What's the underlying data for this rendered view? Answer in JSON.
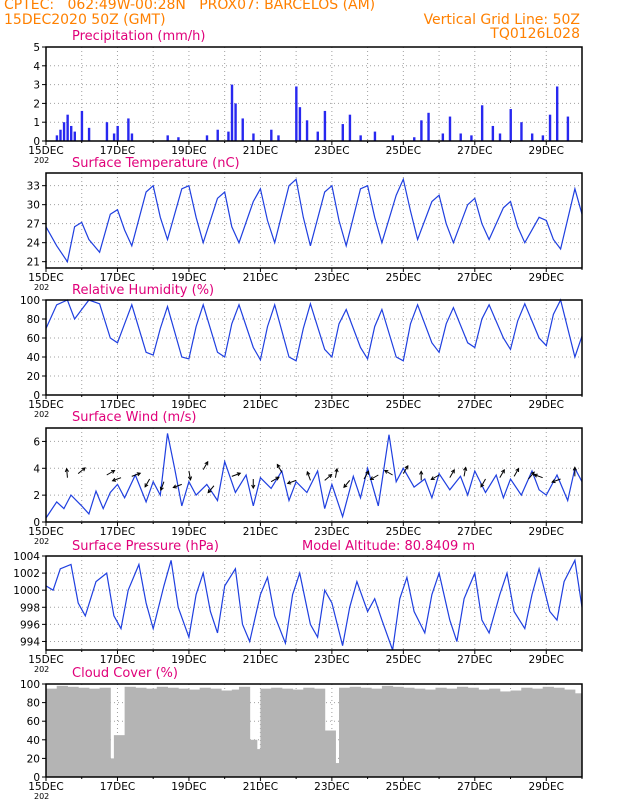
{
  "header": {
    "line1": "CPTEC:   062:49W-00:28N   PROX07: BARCELOS (AM)",
    "line2": "15DEC2020 50Z (GMT)",
    "grid_note": "Vertical Grid Line: 50Z",
    "run_id": "TQ0126L028"
  },
  "x_axis": {
    "days": [
      "15DEC",
      "17DEC",
      "19DEC",
      "21DEC",
      "23DEC",
      "25DEC",
      "27DEC",
      "29DEC"
    ],
    "year_fragment": "202"
  },
  "colors": {
    "header": "#ff8000",
    "title": "#e0007a",
    "line": "#1f3fe0",
    "bar": "#2828f0",
    "cloud": "#b4b4b4",
    "grid": "#a0a0a0"
  },
  "panels": {
    "precip": {
      "title": "Precipitation (mm/h)"
    },
    "temp": {
      "title": "Surface Temperature (nC)"
    },
    "rh": {
      "title": "Relative Humidity (%)"
    },
    "wind": {
      "title": "Surface Wind (m/s)"
    },
    "pres": {
      "title": "Surface Pressure (hPa)",
      "altitude": "Model Altitude: 80.8409 m"
    },
    "cloud": {
      "title": "Cloud Cover (%)"
    }
  },
  "chart_data": [
    {
      "type": "bar",
      "id": "precip",
      "title": "Precipitation (mm/h)",
      "x_range_days": [
        15,
        30
      ],
      "ylim": [
        0,
        5
      ],
      "yticks": [
        0,
        1,
        2,
        3,
        4,
        5
      ],
      "x": [
        15.3,
        15.4,
        15.5,
        15.6,
        15.7,
        15.8,
        16.0,
        16.2,
        16.7,
        16.9,
        17.0,
        17.3,
        17.4,
        18.4,
        18.7,
        19.5,
        19.8,
        20.1,
        20.2,
        20.3,
        20.5,
        20.8,
        21.3,
        21.5,
        22.0,
        22.1,
        22.3,
        22.6,
        22.8,
        23.3,
        23.5,
        23.8,
        24.2,
        24.7,
        25.3,
        25.5,
        25.7,
        26.1,
        26.3,
        26.6,
        26.9,
        27.2,
        27.5,
        27.7,
        28.0,
        28.3,
        28.6,
        28.9,
        29.1,
        29.3,
        29.6
      ],
      "values": [
        0.3,
        0.6,
        1.0,
        1.4,
        0.8,
        0.5,
        1.6,
        0.7,
        1.0,
        0.4,
        0.8,
        1.2,
        0.4,
        0.3,
        0.2,
        0.3,
        0.6,
        0.5,
        3.0,
        2.0,
        1.2,
        0.4,
        0.6,
        0.3,
        2.9,
        1.8,
        1.1,
        0.5,
        1.6,
        0.9,
        1.4,
        0.3,
        0.5,
        0.3,
        0.2,
        1.1,
        1.5,
        0.4,
        1.3,
        0.4,
        0.3,
        1.9,
        0.8,
        0.4,
        1.7,
        1.0,
        0.4,
        0.3,
        1.4,
        2.9,
        1.3
      ]
    },
    {
      "type": "line",
      "id": "temp",
      "title": "Surface Temperature (nC)",
      "x_range_days": [
        15,
        30
      ],
      "ylim": [
        20,
        35
      ],
      "yticks": [
        21,
        24,
        27,
        30,
        33
      ],
      "x": [
        15.0,
        15.3,
        15.6,
        15.8,
        16.0,
        16.2,
        16.5,
        16.8,
        17.0,
        17.2,
        17.4,
        17.8,
        18.0,
        18.2,
        18.4,
        18.8,
        19.0,
        19.2,
        19.4,
        19.8,
        20.0,
        20.2,
        20.4,
        20.8,
        21.0,
        21.2,
        21.4,
        21.8,
        22.0,
        22.2,
        22.4,
        22.8,
        23.0,
        23.2,
        23.4,
        23.8,
        24.0,
        24.2,
        24.4,
        24.8,
        25.0,
        25.2,
        25.4,
        25.8,
        26.0,
        26.2,
        26.4,
        26.8,
        27.0,
        27.2,
        27.4,
        27.8,
        28.0,
        28.2,
        28.4,
        28.8,
        29.0,
        29.2,
        29.4,
        29.8,
        30.0
      ],
      "values": [
        26.5,
        23.5,
        21.0,
        26.5,
        27.2,
        24.5,
        22.5,
        28.5,
        29.2,
        26.0,
        23.5,
        32.0,
        33.0,
        28.0,
        24.5,
        32.5,
        33.0,
        28.0,
        24.0,
        31.0,
        32.0,
        26.5,
        24.0,
        30.5,
        32.5,
        27.5,
        24.0,
        33.0,
        34.0,
        28.0,
        23.5,
        32.0,
        33.0,
        27.5,
        23.5,
        32.5,
        33.0,
        28.0,
        24.0,
        31.5,
        34.0,
        29.0,
        24.5,
        30.5,
        31.5,
        27.0,
        24.0,
        30.0,
        31.0,
        27.0,
        24.5,
        29.5,
        30.5,
        26.5,
        24.0,
        28.0,
        27.5,
        24.5,
        23.0,
        32.5,
        28.5
      ]
    },
    {
      "type": "line",
      "id": "rh",
      "title": "Relative Humidity (%)",
      "x_range_days": [
        15,
        30
      ],
      "ylim": [
        0,
        100
      ],
      "yticks": [
        0,
        20,
        40,
        60,
        80,
        100
      ],
      "x": [
        15.0,
        15.3,
        15.6,
        15.8,
        16.0,
        16.2,
        16.5,
        16.8,
        17.0,
        17.2,
        17.4,
        17.8,
        18.0,
        18.2,
        18.4,
        18.8,
        19.0,
        19.2,
        19.4,
        19.8,
        20.0,
        20.2,
        20.4,
        20.8,
        21.0,
        21.2,
        21.4,
        21.8,
        22.0,
        22.2,
        22.4,
        22.8,
        23.0,
        23.2,
        23.4,
        23.8,
        24.0,
        24.2,
        24.4,
        24.8,
        25.0,
        25.2,
        25.4,
        25.8,
        26.0,
        26.2,
        26.4,
        26.8,
        27.0,
        27.2,
        27.4,
        27.8,
        28.0,
        28.2,
        28.4,
        28.8,
        29.0,
        29.2,
        29.4,
        29.8,
        30.0
      ],
      "values": [
        70,
        95,
        100,
        80,
        90,
        100,
        96,
        60,
        55,
        75,
        95,
        45,
        42,
        70,
        93,
        40,
        38,
        72,
        95,
        45,
        40,
        75,
        95,
        50,
        37,
        72,
        95,
        40,
        36,
        70,
        96,
        48,
        40,
        75,
        90,
        50,
        38,
        72,
        90,
        40,
        36,
        75,
        95,
        55,
        45,
        75,
        92,
        55,
        50,
        80,
        95,
        60,
        48,
        78,
        96,
        60,
        52,
        85,
        100,
        40,
        62
      ]
    },
    {
      "type": "line",
      "id": "wind",
      "title": "Surface Wind (m/s)",
      "x_range_days": [
        15,
        30
      ],
      "ylim": [
        0,
        7
      ],
      "yticks": [
        0,
        2,
        4,
        6
      ],
      "x": [
        15.0,
        15.3,
        15.5,
        15.7,
        16.0,
        16.2,
        16.4,
        16.6,
        16.8,
        17.0,
        17.2,
        17.5,
        17.8,
        18.0,
        18.2,
        18.4,
        18.6,
        18.8,
        19.0,
        19.2,
        19.5,
        19.8,
        20.0,
        20.3,
        20.6,
        20.8,
        21.0,
        21.3,
        21.6,
        21.8,
        22.0,
        22.3,
        22.6,
        22.8,
        23.0,
        23.3,
        23.6,
        23.8,
        24.0,
        24.3,
        24.6,
        24.8,
        25.0,
        25.3,
        25.6,
        25.8,
        26.0,
        26.3,
        26.6,
        26.8,
        27.0,
        27.3,
        27.6,
        27.8,
        28.0,
        28.3,
        28.6,
        28.8,
        29.0,
        29.3,
        29.6,
        29.8,
        30.0
      ],
      "values": [
        0.3,
        1.5,
        1.0,
        2.0,
        1.2,
        0.6,
        2.3,
        1.0,
        2.2,
        2.8,
        1.8,
        3.5,
        1.5,
        3.0,
        2.0,
        6.6,
        4.0,
        1.2,
        3.0,
        2.0,
        2.8,
        1.6,
        4.5,
        2.2,
        3.5,
        1.2,
        3.3,
        2.5,
        3.8,
        1.6,
        3.0,
        2.2,
        3.8,
        1.0,
        2.8,
        0.4,
        3.4,
        1.8,
        4.0,
        1.2,
        6.5,
        3.0,
        4.0,
        2.6,
        3.2,
        1.8,
        3.6,
        2.4,
        3.4,
        2.0,
        3.8,
        2.2,
        3.5,
        1.8,
        3.2,
        2.0,
        3.8,
        2.4,
        2.0,
        3.5,
        1.6,
        4.0,
        3.0
      ],
      "arrows_x": [
        15.6,
        15.9,
        16.7,
        17.1,
        17.4,
        17.9,
        18.3,
        18.8,
        19.0,
        19.4,
        19.7,
        20.2,
        20.8,
        21.3,
        21.6,
        22.0,
        22.4,
        22.8,
        23.1,
        23.5,
        23.9,
        24.3,
        24.7,
        25.0,
        25.5,
        26.0,
        26.3,
        26.7,
        27.3,
        27.7,
        28.1,
        28.5,
        28.9,
        29.4,
        29.8
      ],
      "arrows_y": [
        3.3,
        3.6,
        3.5,
        3.3,
        3.4,
        3.2,
        3.0,
        2.8,
        3.8,
        3.9,
        2.7,
        3.4,
        3.2,
        3.0,
        3.7,
        3.1,
        3.1,
        3.1,
        3.3,
        3.1,
        3.2,
        3.5,
        3.5,
        3.6,
        3.1,
        3.5,
        3.3,
        3.4,
        3.2,
        3.3,
        3.4,
        3.2,
        3.3,
        3.2,
        3.4
      ],
      "arrows_dir_deg": [
        95,
        40,
        30,
        200,
        20,
        240,
        250,
        200,
        280,
        60,
        230,
        20,
        270,
        30,
        120,
        200,
        110,
        40,
        80,
        230,
        60,
        210,
        150,
        60,
        90,
        210,
        60,
        80,
        240,
        60,
        60,
        50,
        160,
        200,
        90
      ]
    },
    {
      "type": "line",
      "id": "pres",
      "title": "Surface Pressure (hPa)",
      "x_range_days": [
        15,
        30
      ],
      "ylim": [
        993,
        1004
      ],
      "yticks": [
        994,
        996,
        998,
        1000,
        1002,
        1004
      ],
      "x": [
        15.0,
        15.2,
        15.4,
        15.7,
        15.9,
        16.1,
        16.4,
        16.7,
        16.9,
        17.1,
        17.3,
        17.6,
        17.8,
        18.0,
        18.3,
        18.5,
        18.7,
        19.0,
        19.2,
        19.4,
        19.6,
        19.8,
        20.0,
        20.3,
        20.5,
        20.7,
        21.0,
        21.2,
        21.4,
        21.7,
        21.9,
        22.1,
        22.4,
        22.6,
        22.8,
        23.0,
        23.3,
        23.5,
        23.7,
        24.0,
        24.2,
        24.4,
        24.7,
        24.9,
        25.1,
        25.3,
        25.6,
        25.8,
        26.0,
        26.3,
        26.5,
        26.7,
        27.0,
        27.2,
        27.4,
        27.7,
        27.9,
        28.1,
        28.4,
        28.6,
        28.8,
        29.1,
        29.3,
        29.5,
        29.8,
        30.0
      ],
      "values": [
        1000.5,
        1000.0,
        1002.5,
        1003.0,
        998.5,
        997.0,
        1001.0,
        1002.0,
        997.0,
        995.5,
        1000.0,
        1003.0,
        998.5,
        995.5,
        1000.5,
        1003.5,
        998.0,
        994.5,
        999.5,
        1002.0,
        997.5,
        995.0,
        1000.5,
        1002.5,
        996.0,
        994.0,
        999.5,
        1001.5,
        997.0,
        993.8,
        999.5,
        1002.0,
        996.0,
        994.5,
        1000.0,
        998.5,
        993.5,
        998.0,
        1001.0,
        997.5,
        999.0,
        996.5,
        993.0,
        999.0,
        1001.5,
        997.5,
        995.0,
        999.5,
        1002.0,
        996.5,
        994.0,
        999.0,
        1002.0,
        996.5,
        995.0,
        999.5,
        1002.0,
        997.5,
        995.5,
        999.5,
        1002.5,
        997.5,
        996.5,
        1001.0,
        1003.5,
        998.0
      ]
    },
    {
      "type": "bar",
      "id": "cloud",
      "title": "Cloud Cover (%)",
      "x_range_days": [
        15,
        30
      ],
      "ylim": [
        0,
        100
      ],
      "yticks": [
        0,
        20,
        40,
        60,
        80,
        100
      ],
      "x": [
        15.0,
        15.3,
        15.6,
        15.9,
        16.2,
        16.5,
        16.8,
        16.9,
        17.0,
        17.1,
        17.2,
        17.5,
        17.8,
        18.1,
        18.4,
        18.7,
        19.0,
        19.3,
        19.6,
        19.9,
        20.2,
        20.4,
        20.6,
        20.7,
        20.8,
        20.9,
        21.0,
        21.3,
        21.6,
        21.9,
        22.2,
        22.5,
        22.8,
        22.9,
        23.0,
        23.1,
        23.2,
        23.5,
        23.8,
        24.1,
        24.4,
        24.7,
        25.0,
        25.3,
        25.6,
        25.9,
        26.2,
        26.5,
        26.8,
        27.1,
        27.4,
        27.7,
        28.0,
        28.3,
        28.6,
        28.9,
        29.2,
        29.5,
        29.8
      ],
      "values": [
        95,
        98,
        97,
        96,
        95,
        96,
        20,
        45,
        3,
        15,
        97,
        96,
        95,
        97,
        96,
        95,
        94,
        96,
        95,
        93,
        94,
        97,
        40,
        12,
        3,
        30,
        95,
        96,
        95,
        94,
        96,
        95,
        50,
        6,
        2,
        15,
        96,
        97,
        96,
        95,
        98,
        97,
        96,
        95,
        94,
        96,
        95,
        97,
        96,
        94,
        95,
        92,
        93,
        96,
        95,
        97,
        96,
        94,
        90
      ]
    }
  ]
}
